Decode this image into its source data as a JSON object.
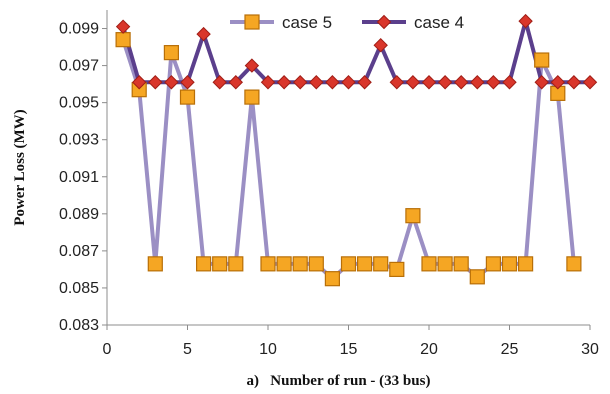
{
  "chart_data": {
    "type": "line",
    "xlabel": "a)   Number of run - (33 bus)",
    "ylabel": "Power Loss (MW)",
    "xlim": [
      0,
      30
    ],
    "ylim": [
      0.083,
      0.1
    ],
    "xticks": [
      0,
      5,
      10,
      15,
      20,
      25,
      30
    ],
    "yticks": [
      0.083,
      0.085,
      0.087,
      0.089,
      0.091,
      0.093,
      0.095,
      0.097,
      0.099
    ],
    "ytick_labels": [
      "0.083",
      "0.085",
      "0.087",
      "0.089",
      "0.091",
      "0.093",
      "0.095",
      "0.097",
      "0.099"
    ],
    "grid": false,
    "legend_position": "top",
    "x": [
      1,
      2,
      3,
      4,
      5,
      6,
      7,
      8,
      9,
      10,
      11,
      12,
      13,
      14,
      15,
      16,
      17,
      18,
      19,
      20,
      21,
      22,
      23,
      24,
      25,
      26,
      27,
      28,
      29,
      30
    ],
    "series": [
      {
        "name": "case 5",
        "color": "#9b8fc4",
        "marker": "square",
        "marker_color": "#f5a623",
        "values": [
          0.0984,
          0.0957,
          0.0863,
          0.0977,
          0.0953,
          0.0863,
          0.0863,
          0.0863,
          0.0953,
          0.0863,
          0.0863,
          0.0863,
          0.0863,
          0.0855,
          0.0863,
          0.0863,
          0.0863,
          0.086,
          0.0889,
          0.0863,
          0.0863,
          0.0863,
          0.0856,
          0.0863,
          0.0863,
          0.0863,
          0.0973,
          0.0955,
          0.0863,
          null
        ]
      },
      {
        "name": "case 4",
        "color": "#5b3f8c",
        "marker": "diamond",
        "marker_color": "#d9362b",
        "values": [
          0.0991,
          0.0961,
          0.0961,
          0.0961,
          0.0961,
          0.0987,
          0.0961,
          0.0961,
          0.097,
          0.0961,
          0.0961,
          0.0961,
          0.0961,
          0.0961,
          0.0961,
          0.0961,
          0.0981,
          0.0961,
          0.0961,
          0.0961,
          0.0961,
          0.0961,
          0.0961,
          0.0961,
          0.0961,
          0.0994,
          0.0961,
          0.0961,
          0.0961,
          0.0961
        ]
      }
    ]
  }
}
